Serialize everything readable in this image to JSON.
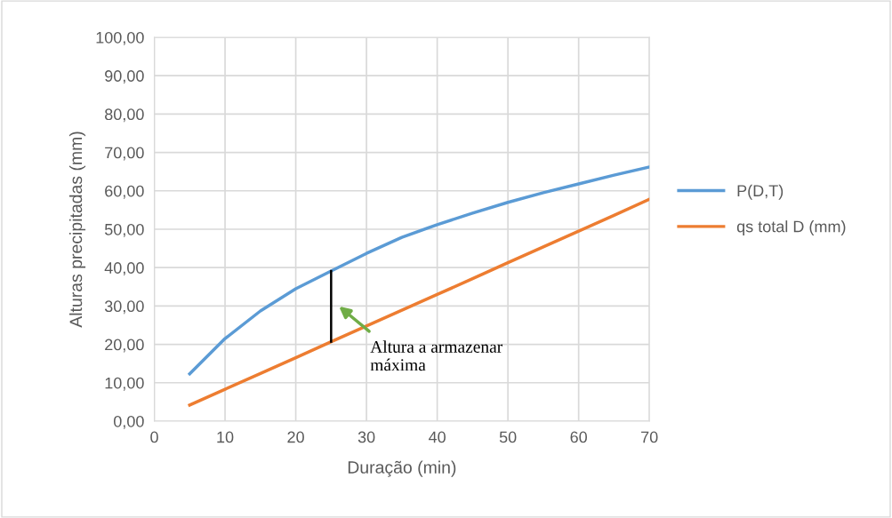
{
  "chart_data": {
    "type": "line",
    "xlabel": "Duração (min)",
    "ylabel": "Alturas precipitadas (mm)",
    "x": [
      5,
      10,
      15,
      20,
      25,
      30,
      35,
      40,
      45,
      50,
      55,
      60,
      65,
      70
    ],
    "series": [
      {
        "name": "P(D,T)",
        "color": "#5b9bd5",
        "values": [
          12.3,
          21.5,
          28.7,
          34.5,
          39.1,
          43.7,
          47.9,
          51.2,
          54.2,
          57.0,
          59.5,
          61.8,
          64.1,
          66.2
        ]
      },
      {
        "name": "qs total D (mm)",
        "color": "#ed7d31",
        "values": [
          4.2,
          8.3,
          12.4,
          16.5,
          20.7,
          24.8,
          28.9,
          33.0,
          37.1,
          41.3,
          45.4,
          49.5,
          53.6,
          57.8
        ]
      },
      {
        "color": "#000000",
        "x": [
          25,
          25
        ],
        "values": [
          20.7,
          39.1
        ]
      }
    ],
    "annotations": [
      "Altura a armazenar\nmáxima"
    ],
    "xlim": [
      0,
      70
    ],
    "xticks": [
      0,
      10,
      20,
      30,
      40,
      50,
      60,
      70
    ],
    "ylim": [
      0,
      100
    ],
    "yticks": [
      {
        "value": 0,
        "label": "0,00"
      },
      {
        "value": 10,
        "label": "10,00"
      },
      {
        "value": 20,
        "label": "20,00"
      },
      {
        "value": 30,
        "label": "30,00"
      },
      {
        "value": 40,
        "label": "40,00"
      },
      {
        "value": 50,
        "label": "50,00"
      },
      {
        "value": 60,
        "label": "60,00"
      },
      {
        "value": 70,
        "label": "70,00"
      },
      {
        "value": 80,
        "label": "80,00"
      },
      {
        "value": 90,
        "label": "90,00"
      },
      {
        "value": 100,
        "label": "100,00"
      }
    ],
    "grid": true,
    "legend": "right",
    "marker": "none",
    "line_style": "solid"
  }
}
